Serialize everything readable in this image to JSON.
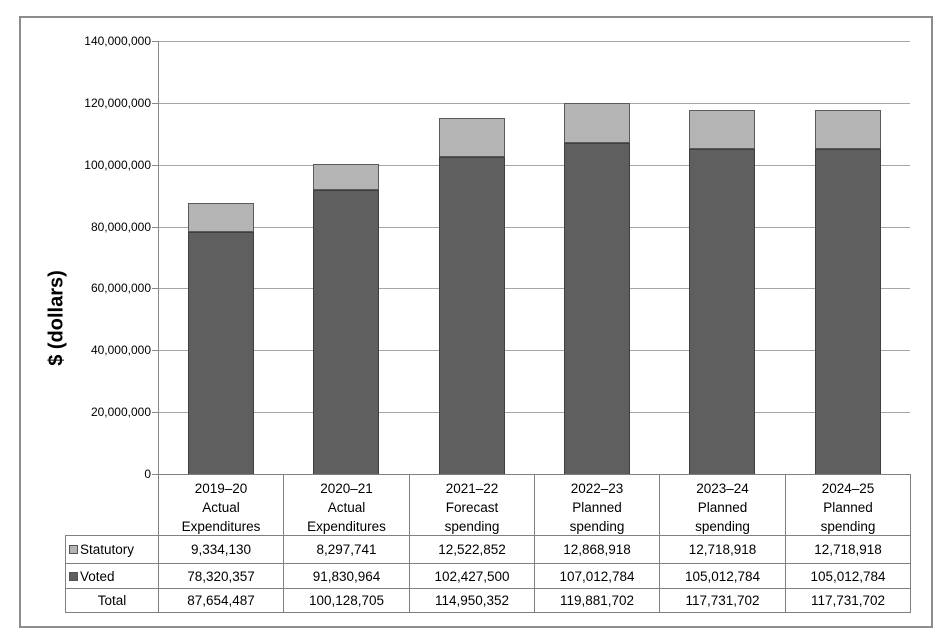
{
  "figure": {
    "ylabel": "$ (dollars)"
  },
  "chart_data": {
    "type": "bar",
    "stacked": true,
    "title": "",
    "xlabel": "",
    "ylabel": "$ (dollars)",
    "ylim": [
      0,
      140000000
    ],
    "ytick_step": 20000000,
    "ytick_labels": [
      "0",
      "20,000,000",
      "40,000,000",
      "60,000,000",
      "80,000,000",
      "100,000,000",
      "120,000,000",
      "140,000,000"
    ],
    "grid": true,
    "legend_position": "table-rows-left",
    "categories": [
      "2019–20\nActual\nExpenditures",
      "2020–21\nActual\nExpenditures",
      "2021–22\nForecast\nspending",
      "2022–23\nPlanned\nspending",
      "2023–24\nPlanned\nspending",
      "2024–25\nPlanned\nspending"
    ],
    "series": [
      {
        "name": "Statutory",
        "color": "#b4b4b4",
        "border_color": "#5a5a5a",
        "values": [
          9334130,
          8297741,
          12522852,
          12868918,
          12718918,
          12718918
        ]
      },
      {
        "name": "Voted",
        "color": "#5f5f5f",
        "border_color": "#3f3f3f",
        "values": [
          78320357,
          91830964,
          102427500,
          107012784,
          105012784,
          105012784
        ]
      }
    ],
    "stack_order_bottom_to_top": [
      "Voted",
      "Statutory"
    ],
    "totals_row": {
      "label": "Total",
      "values": [
        87654487,
        100128705,
        114950352,
        119881702,
        117731702,
        117731702
      ]
    },
    "table_formatted": {
      "Statutory": [
        "9,334,130",
        "8,297,741",
        "12,522,852",
        "12,868,918",
        "12,718,918",
        "12,718,918"
      ],
      "Voted": [
        "78,320,357",
        "91,830,964",
        "102,427,500",
        "107,012,784",
        "105,012,784",
        "105,012,784"
      ],
      "Total": [
        "87,654,487",
        "100,128,705",
        "114,950,352",
        "119,881,702",
        "117,731,702",
        "117,731,702"
      ]
    },
    "colors": {
      "gridline": "#a6a6a6",
      "axis": "#898989",
      "table_border": "#7f7f7f",
      "figure_border": "#8c8c8c",
      "text": "#000000"
    }
  }
}
